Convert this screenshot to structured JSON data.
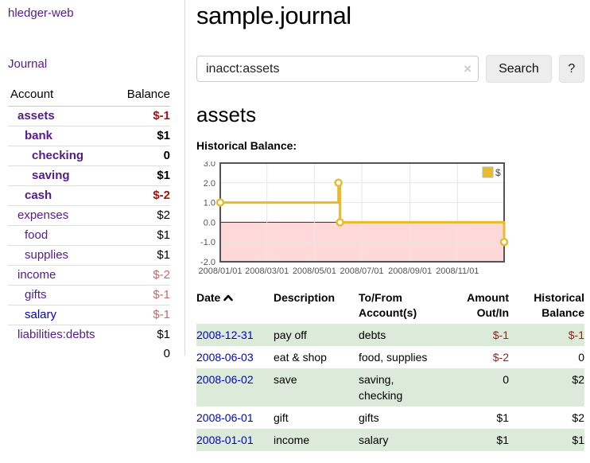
{
  "theme": {
    "link_purple": "#551a8b",
    "link_blue": "#0000cc",
    "negative_bold": "#a01313",
    "negative_muted": "#c46b6b",
    "negative_register": "#96261d",
    "stripe_green": "#dcead9"
  },
  "app": {
    "title": "hledger-web"
  },
  "nav": {
    "journal_label": "Journal"
  },
  "sidebar": {
    "headers": {
      "account": "Account",
      "balance": "Balance"
    },
    "accounts": [
      {
        "name": "assets",
        "indent": 1,
        "bold": true,
        "balance": "$-1",
        "negative": true
      },
      {
        "name": "bank",
        "indent": 2,
        "bold": true,
        "balance": "$1",
        "negative": false
      },
      {
        "name": "checking",
        "indent": 3,
        "bold": true,
        "balance": "0",
        "negative": false
      },
      {
        "name": "saving",
        "indent": 3,
        "bold": true,
        "balance": "$1",
        "negative": false
      },
      {
        "name": "cash",
        "indent": 2,
        "bold": true,
        "balance": "$-2",
        "negative": true
      },
      {
        "name": "expenses",
        "indent": 1,
        "bold": false,
        "balance": "$2",
        "negative": false
      },
      {
        "name": "food",
        "indent": 2,
        "bold": false,
        "balance": "$1",
        "negative": false
      },
      {
        "name": "supplies",
        "indent": 2,
        "bold": false,
        "balance": "$1",
        "negative": false
      },
      {
        "name": "income",
        "indent": 1,
        "bold": false,
        "balance": "$-2",
        "negative": true
      },
      {
        "name": "gifts",
        "indent": 2,
        "bold": false,
        "balance": "$-1",
        "negative": true
      },
      {
        "name": "salary",
        "indent": 2,
        "bold": false,
        "balance": "$-1",
        "negative": true,
        "color": "#0000cc"
      },
      {
        "name": "liabilities:debts",
        "indent": 1,
        "bold": false,
        "balance": "$1",
        "negative": false
      }
    ],
    "total": "0"
  },
  "header": {
    "title": "sample.journal"
  },
  "search": {
    "value": "inacct:assets",
    "clear_icon": "×",
    "button_label": "Search",
    "help_label": "?"
  },
  "account_page": {
    "heading": "assets",
    "chart_title": "Historical Balance:"
  },
  "chart_data": {
    "type": "line",
    "step": true,
    "title": "Historical Balance",
    "series": [
      {
        "name": "$",
        "color": "#e8bb2d",
        "points": [
          [
            "2008-01-01",
            1
          ],
          [
            "2008-06-01",
            2
          ],
          [
            "2008-06-03",
            0
          ],
          [
            "2008-12-31",
            -1
          ]
        ]
      }
    ],
    "x_range": [
      "2008-01-01",
      "2008-12-31"
    ],
    "y_range": [
      -2,
      3
    ],
    "x_ticks": [
      "2008/01/01",
      "2008/03/01",
      "2008/05/01",
      "2008/07/01",
      "2008/09/01",
      "2008/11/01"
    ],
    "y_ticks": [
      3.0,
      2.0,
      1.0,
      0.0,
      -1.0,
      -2.0
    ],
    "grid": true,
    "grid_color": "#e6e6e6",
    "border_color": "#545454",
    "tick_color": "#545454",
    "zero_line_color": "#8b0000",
    "negative_fill": "#ffd9d9",
    "legend": {
      "position": "top-right",
      "label": "$",
      "swatch_color": "#e8bb2d"
    }
  },
  "register": {
    "headers": {
      "date": "Date",
      "description": "Description",
      "tofrom": "To/From Account(s)",
      "amount": "Amount Out/In",
      "balance": "Historical Balance"
    },
    "sort_icon": "chevron-up",
    "rows": [
      {
        "date": "2008-12-31",
        "description": "pay off",
        "tofrom": "debts",
        "amount": "$-1",
        "amount_negative": true,
        "balance": "$-1",
        "balance_negative": true,
        "stripe": true
      },
      {
        "date": "2008-06-03",
        "description": "eat & shop",
        "tofrom": "food, supplies",
        "amount": "$-2",
        "amount_negative": true,
        "balance": "0",
        "balance_negative": false,
        "stripe": false
      },
      {
        "date": "2008-06-02",
        "description": "save",
        "tofrom": "saving, checking",
        "amount": "0",
        "amount_negative": false,
        "balance": "$2",
        "balance_negative": false,
        "stripe": true
      },
      {
        "date": "2008-06-01",
        "description": "gift",
        "tofrom": "gifts",
        "amount": "$1",
        "amount_negative": false,
        "balance": "$2",
        "balance_negative": false,
        "stripe": false
      },
      {
        "date": "2008-01-01",
        "description": "income",
        "tofrom": "salary",
        "amount": "$1",
        "amount_negative": false,
        "balance": "$1",
        "balance_negative": false,
        "stripe": true
      }
    ]
  }
}
